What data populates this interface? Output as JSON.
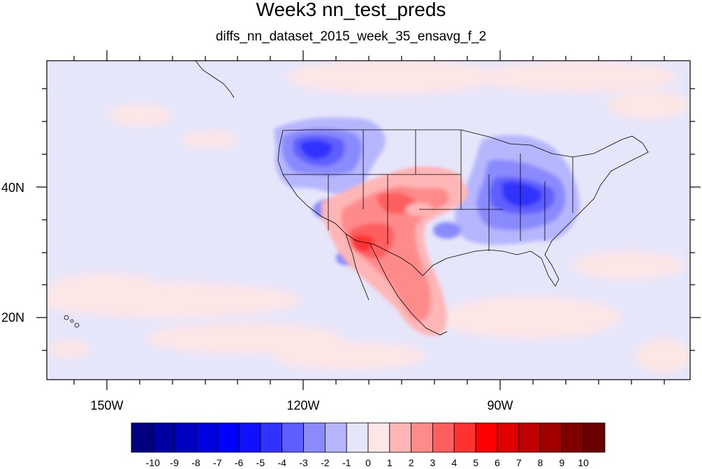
{
  "title": "Week3 nn_test_preds",
  "subtitle": "diffs_nn_dataset_2015_week_35_ensavg_f_2",
  "map": {
    "background_color": "#e6e6fb",
    "lon_ticks": [
      "150W",
      "120W",
      "90W"
    ],
    "lat_ticks": [
      "40N",
      "20N"
    ]
  },
  "colorbar": {
    "labels": [
      "-10",
      "-9",
      "-8",
      "-7",
      "-6",
      "-5",
      "-4",
      "-3",
      "-2",
      "-1",
      "0",
      "1",
      "2",
      "3",
      "4",
      "5",
      "6",
      "7",
      "8",
      "9",
      "10"
    ],
    "colors": [
      "#000080",
      "#0000a0",
      "#0000c0",
      "#0000e0",
      "#0000ff",
      "#1010ff",
      "#3232ff",
      "#5e5eff",
      "#8a8aff",
      "#b6b6ff",
      "#e6e6fb",
      "#fde6e6",
      "#ffb6b6",
      "#ff8a8a",
      "#ff5e5e",
      "#ff3232",
      "#ff0000",
      "#e00000",
      "#c00000",
      "#a00000",
      "#800000",
      "#6a0000"
    ]
  }
}
